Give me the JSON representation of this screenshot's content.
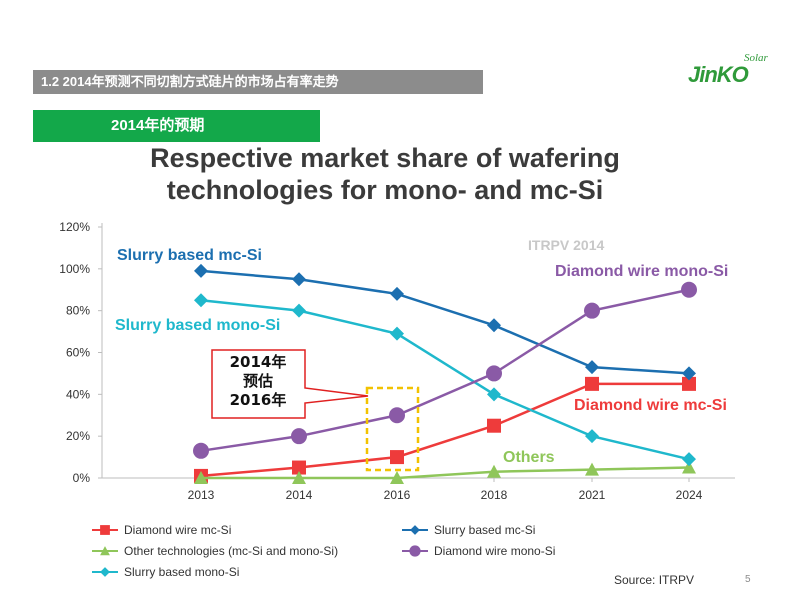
{
  "header": {
    "section_title": "1.2 2014年预测不同切割方式硅片的市场占有率走势"
  },
  "logo": {
    "main": "JinKO",
    "sub": "Solar"
  },
  "subheader": {
    "label": "2014年的预期"
  },
  "page_number": "5",
  "colors": {
    "diamond_mc": "#ee3b3b",
    "other": "#8fc65a",
    "slurry_mono": "#1fb8cc",
    "slurry_mc": "#1c6fb0",
    "diamond_mono": "#8a5aa6",
    "green_bar": "#13a84a",
    "highlight_box": "#f2c200",
    "callout_border": "#e02020"
  },
  "chart_data": {
    "type": "line",
    "title": "Respective market share of wafering technologies for mono- and mc-Si",
    "x": [
      "2013",
      "2014",
      "2016",
      "2018",
      "2021",
      "2024"
    ],
    "ylim": [
      0,
      120
    ],
    "yticks": [
      "0%",
      "20%",
      "40%",
      "60%",
      "80%",
      "100%",
      "120%"
    ],
    "ytick_values": [
      0,
      20,
      40,
      60,
      80,
      100,
      120
    ],
    "grid": false,
    "watermark": "ITRPV 2014",
    "source": "Source: ITRPV",
    "series": [
      {
        "key": "diamond_mc",
        "name": "Diamond wire mc-Si",
        "inline_label": "Diamond wire mc-Si",
        "marker": "square",
        "values": [
          1,
          5,
          10,
          25,
          45,
          45
        ]
      },
      {
        "key": "other",
        "name": "Other technologies (mc-Si and mono-Si)",
        "inline_label": "Others",
        "marker": "triangle",
        "values": [
          0,
          0,
          0,
          3,
          4,
          5
        ]
      },
      {
        "key": "slurry_mono",
        "name": "Slurry based mono-Si",
        "inline_label": "Slurry based mono-Si",
        "marker": "diamond",
        "values": [
          85,
          80,
          69,
          40,
          20,
          9
        ]
      },
      {
        "key": "slurry_mc",
        "name": "Slurry based mc-Si",
        "inline_label": "Slurry based mc-Si",
        "marker": "diamond",
        "values": [
          99,
          95,
          88,
          73,
          53,
          50
        ]
      },
      {
        "key": "diamond_mono",
        "name": "Diamond wire mono-Si",
        "inline_label": "Diamond wire mono-Si",
        "marker": "circle",
        "values": [
          13,
          20,
          30,
          50,
          80,
          90
        ]
      }
    ],
    "annotation": {
      "lines": [
        "2014年",
        "预估",
        "2016年"
      ]
    }
  }
}
